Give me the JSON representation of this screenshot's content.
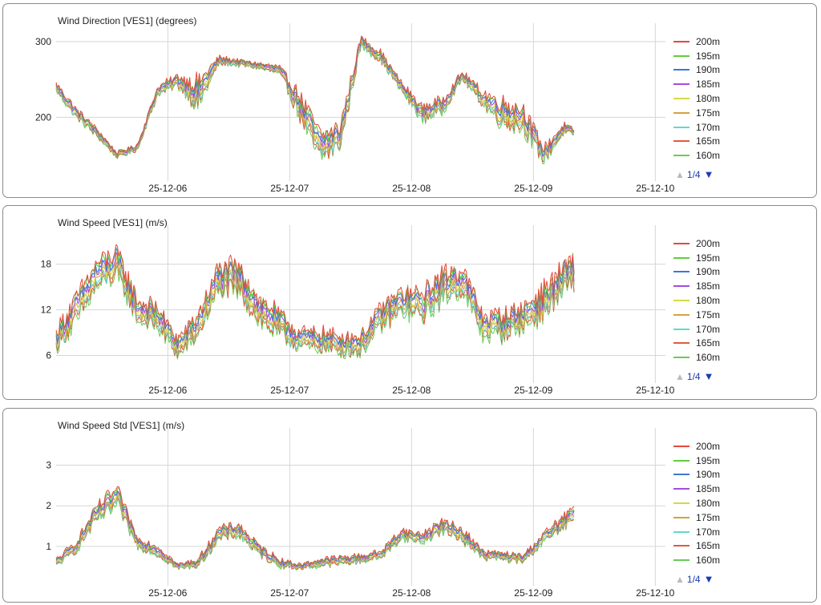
{
  "panels": [
    {
      "title": "Wind Direction [VES1] (degrees)",
      "pager": {
        "text": "1/4",
        "up_icon": "triangle-up-icon",
        "down_icon": "triangle-down-icon"
      }
    },
    {
      "title": "Wind Speed [VES1] (m/s)",
      "pager": {
        "text": "1/4",
        "up_icon": "triangle-up-icon",
        "down_icon": "triangle-down-icon"
      }
    },
    {
      "title": "Wind Speed Std [VES1] (m/s)",
      "pager": {
        "text": "1/4",
        "up_icon": "triangle-up-icon",
        "down_icon": "triangle-down-icon"
      }
    }
  ],
  "chart_data": [
    {
      "type": "line",
      "title": "Wind Direction [VES1] (degrees)",
      "xlabel": "",
      "ylabel": "",
      "x_ticks": [
        "25-12-06",
        "25-12-07",
        "25-12-08",
        "25-12-09",
        "25-12-10"
      ],
      "x_range": [
        "25-12-05 02:00",
        "25-12-10 02:00"
      ],
      "x_data_end": "25-12-09 08:00",
      "y_ticks": [
        200,
        300
      ],
      "ylim": [
        122,
        318
      ],
      "grid": true,
      "legend_position": "right",
      "series": [
        {
          "name": "200m",
          "color": "#e8473b"
        },
        {
          "name": "195m",
          "color": "#5fcf3a"
        },
        {
          "name": "190m",
          "color": "#3a78d8"
        },
        {
          "name": "185m",
          "color": "#a64be0"
        },
        {
          "name": "180m",
          "color": "#d8d845"
        },
        {
          "name": "175m",
          "color": "#d8a040"
        },
        {
          "name": "170m",
          "color": "#62d8d0"
        },
        {
          "name": "165m",
          "color": "#e05a40"
        },
        {
          "name": "160m",
          "color": "#6acb54"
        }
      ],
      "x": [
        "25-12-05 02:00",
        "25-12-05 06:00",
        "25-12-05 10:00",
        "25-12-05 14:00",
        "25-12-05 18:00",
        "25-12-05 22:00",
        "25-12-06 02:00",
        "25-12-06 06:00",
        "25-12-06 10:00",
        "25-12-06 14:00",
        "25-12-06 18:00",
        "25-12-06 22:00",
        "25-12-07 02:00",
        "25-12-07 06:00",
        "25-12-07 10:00",
        "25-12-07 14:00",
        "25-12-07 18:00",
        "25-12-07 22:00",
        "25-12-08 02:00",
        "25-12-08 06:00",
        "25-12-08 10:00",
        "25-12-08 14:00",
        "25-12-08 18:00",
        "25-12-08 22:00",
        "25-12-09 02:00",
        "25-12-09 06:00",
        "25-12-09 08:00"
      ],
      "center": [
        240,
        205,
        180,
        150,
        160,
        235,
        248,
        230,
        275,
        272,
        268,
        262,
        215,
        160,
        175,
        300,
        280,
        240,
        205,
        215,
        255,
        225,
        205,
        200,
        150,
        185,
        180
      ],
      "spread": [
        10,
        10,
        8,
        6,
        6,
        10,
        12,
        30,
        8,
        6,
        6,
        8,
        25,
        30,
        25,
        10,
        10,
        10,
        15,
        15,
        8,
        15,
        25,
        25,
        15,
        10,
        6
      ]
    },
    {
      "type": "line",
      "title": "Wind Speed [VES1] (m/s)",
      "xlabel": "",
      "ylabel": "",
      "x_ticks": [
        "25-12-06",
        "25-12-07",
        "25-12-08",
        "25-12-09",
        "25-12-10"
      ],
      "x_range": [
        "25-12-05 02:00",
        "25-12-10 02:00"
      ],
      "x_data_end": "25-12-09 08:00",
      "y_ticks": [
        6,
        12,
        18
      ],
      "ylim": [
        3,
        22.5
      ],
      "grid": true,
      "legend_position": "right",
      "series": [
        {
          "name": "200m",
          "color": "#e8473b"
        },
        {
          "name": "195m",
          "color": "#5fcf3a"
        },
        {
          "name": "190m",
          "color": "#3a78d8"
        },
        {
          "name": "185m",
          "color": "#a64be0"
        },
        {
          "name": "180m",
          "color": "#d8d845"
        },
        {
          "name": "175m",
          "color": "#d8a040"
        },
        {
          "name": "170m",
          "color": "#62d8d0"
        },
        {
          "name": "165m",
          "color": "#e05a40"
        },
        {
          "name": "160m",
          "color": "#6acb54"
        }
      ],
      "x": [
        "25-12-05 02:00",
        "25-12-05 06:00",
        "25-12-05 10:00",
        "25-12-05 14:00",
        "25-12-05 18:00",
        "25-12-05 22:00",
        "25-12-06 02:00",
        "25-12-06 06:00",
        "25-12-06 10:00",
        "25-12-06 14:00",
        "25-12-06 18:00",
        "25-12-06 22:00",
        "25-12-07 02:00",
        "25-12-07 06:00",
        "25-12-07 10:00",
        "25-12-07 14:00",
        "25-12-07 18:00",
        "25-12-07 22:00",
        "25-12-08 02:00",
        "25-12-08 06:00",
        "25-12-08 10:00",
        "25-12-08 14:00",
        "25-12-08 18:00",
        "25-12-08 22:00",
        "25-12-09 02:00",
        "25-12-09 06:00",
        "25-12-09 08:00"
      ],
      "center": [
        8,
        12,
        16.5,
        18,
        12,
        11,
        7,
        10,
        16,
        16,
        12,
        10,
        8,
        8,
        7.5,
        7.5,
        11,
        13,
        12.5,
        15,
        16,
        10,
        10,
        11,
        13,
        16,
        17
      ],
      "spread": [
        2,
        3,
        3,
        3,
        2.5,
        2.5,
        2,
        2.5,
        3,
        3,
        3,
        2.5,
        2,
        2,
        2,
        2,
        2.5,
        2.5,
        3,
        3,
        3,
        2.5,
        2.5,
        2.5,
        3,
        3,
        3
      ]
    },
    {
      "type": "line",
      "title": "Wind Speed Std [VES1] (m/s)",
      "xlabel": "",
      "ylabel": "",
      "x_ticks": [
        "25-12-06",
        "25-12-07",
        "25-12-08",
        "25-12-09",
        "25-12-10"
      ],
      "x_range": [
        "25-12-05 02:00",
        "25-12-10 02:00"
      ],
      "x_data_end": "25-12-09 08:00",
      "y_ticks": [
        1,
        2,
        3
      ],
      "ylim": [
        0.15,
        3.8
      ],
      "grid": true,
      "legend_position": "right",
      "series": [
        {
          "name": "200m",
          "color": "#e8473b"
        },
        {
          "name": "195m",
          "color": "#5fcf3a"
        },
        {
          "name": "190m",
          "color": "#3a78d8"
        },
        {
          "name": "185m",
          "color": "#a64be0"
        },
        {
          "name": "180m",
          "color": "#d8d845"
        },
        {
          "name": "175m",
          "color": "#d8a040"
        },
        {
          "name": "170m",
          "color": "#62d8d0"
        },
        {
          "name": "165m",
          "color": "#e05a40"
        },
        {
          "name": "160m",
          "color": "#6acb54"
        }
      ],
      "x": [
        "25-12-05 02:00",
        "25-12-05 06:00",
        "25-12-05 10:00",
        "25-12-05 14:00",
        "25-12-05 18:00",
        "25-12-05 22:00",
        "25-12-06 02:00",
        "25-12-06 06:00",
        "25-12-06 10:00",
        "25-12-06 14:00",
        "25-12-06 18:00",
        "25-12-06 22:00",
        "25-12-07 02:00",
        "25-12-07 06:00",
        "25-12-07 10:00",
        "25-12-07 14:00",
        "25-12-07 18:00",
        "25-12-07 22:00",
        "25-12-08 02:00",
        "25-12-08 06:00",
        "25-12-08 10:00",
        "25-12-08 14:00",
        "25-12-08 18:00",
        "25-12-08 22:00",
        "25-12-09 02:00",
        "25-12-09 06:00",
        "25-12-09 08:00"
      ],
      "center": [
        0.6,
        1.0,
        1.8,
        2.2,
        1.1,
        0.9,
        0.5,
        0.6,
        1.3,
        1.4,
        0.9,
        0.6,
        0.5,
        0.6,
        0.65,
        0.7,
        0.8,
        1.3,
        1.2,
        1.5,
        1.3,
        0.8,
        0.75,
        0.7,
        1.2,
        1.6,
        1.8
      ],
      "spread": [
        0.15,
        0.2,
        0.3,
        0.4,
        0.2,
        0.2,
        0.1,
        0.15,
        0.25,
        0.25,
        0.2,
        0.15,
        0.1,
        0.15,
        0.15,
        0.15,
        0.15,
        0.2,
        0.2,
        0.25,
        0.25,
        0.15,
        0.15,
        0.15,
        0.2,
        0.25,
        0.3
      ]
    }
  ]
}
